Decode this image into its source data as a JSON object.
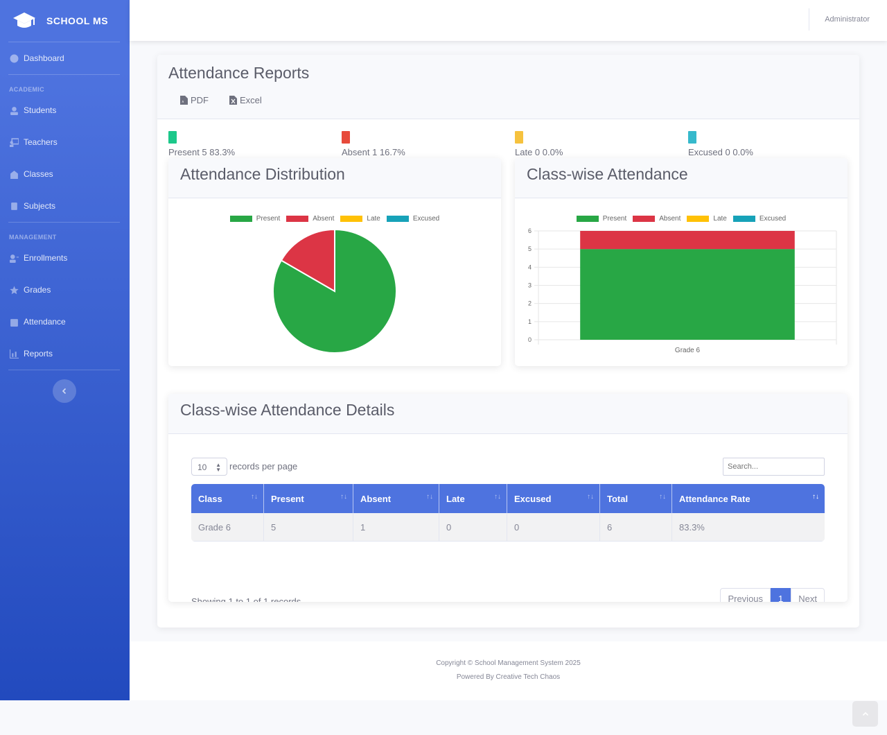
{
  "brand": {
    "name": "SCHOOL MS"
  },
  "sidebar": {
    "dashboard": "Dashboard",
    "heading_academic": "ACADEMIC",
    "students": "Students",
    "teachers": "Teachers",
    "classes": "Classes",
    "subjects": "Subjects",
    "heading_management": "MANAGEMENT",
    "enrollments": "Enrollments",
    "grades": "Grades",
    "attendance": "Attendance",
    "reports": "Reports"
  },
  "topbar": {
    "user": "Administrator"
  },
  "page": {
    "title": "Attendance Reports",
    "pdf_label": "PDF",
    "excel_label": "Excel"
  },
  "stats": [
    {
      "label": "Present 5 83.3%",
      "color": "#1cc88a"
    },
    {
      "label": "Absent 1 16.7%",
      "color": "#e74a3b"
    },
    {
      "label": "Late 0 0.0%",
      "color": "#f6c23e"
    },
    {
      "label": "Excused 0 0.0%",
      "color": "#36b9cc"
    }
  ],
  "pie_card": {
    "title": "Attendance Distribution"
  },
  "bar_card": {
    "title": "Class-wise Attendance"
  },
  "legend": [
    {
      "label": "Present",
      "color": "#28a745"
    },
    {
      "label": "Absent",
      "color": "#dc3545"
    },
    {
      "label": "Late",
      "color": "#ffc107"
    },
    {
      "label": "Excused",
      "color": "#17a2b8"
    }
  ],
  "chart_data": [
    {
      "type": "pie",
      "categories": [
        "Present",
        "Absent",
        "Late",
        "Excused"
      ],
      "values": [
        5,
        1,
        0,
        0
      ],
      "colors": [
        "#28a745",
        "#dc3545",
        "#ffc107",
        "#17a2b8"
      ],
      "legend": "top"
    },
    {
      "type": "bar",
      "stacked": true,
      "categories": [
        "Grade 6"
      ],
      "series": [
        {
          "name": "Present",
          "values": [
            5
          ],
          "color": "#28a745"
        },
        {
          "name": "Absent",
          "values": [
            1
          ],
          "color": "#dc3545"
        },
        {
          "name": "Late",
          "values": [
            0
          ],
          "color": "#ffc107"
        },
        {
          "name": "Excused",
          "values": [
            0
          ],
          "color": "#17a2b8"
        }
      ],
      "ylim": [
        0,
        6
      ],
      "yticks": [
        "0",
        "1",
        "2",
        "3",
        "4",
        "5",
        "6"
      ],
      "grid": true,
      "legend": "top"
    }
  ],
  "details": {
    "title": "Class-wise Attendance Details",
    "page_size": "10",
    "per_page_label": "records per page",
    "search_placeholder": "Search...",
    "columns": [
      "Class",
      "Present",
      "Absent",
      "Late",
      "Excused",
      "Total",
      "Attendance Rate"
    ],
    "rows": [
      [
        "Grade 6",
        "5",
        "1",
        "0",
        "0",
        "6",
        "83.3%"
      ]
    ],
    "info": "Showing 1 to 1 of 1 records",
    "prev": "Previous",
    "page": "1",
    "next": "Next"
  },
  "footer": {
    "copyright": "Copyright © School Management System 2025",
    "powered": "Powered By Creative Tech Chaos"
  }
}
